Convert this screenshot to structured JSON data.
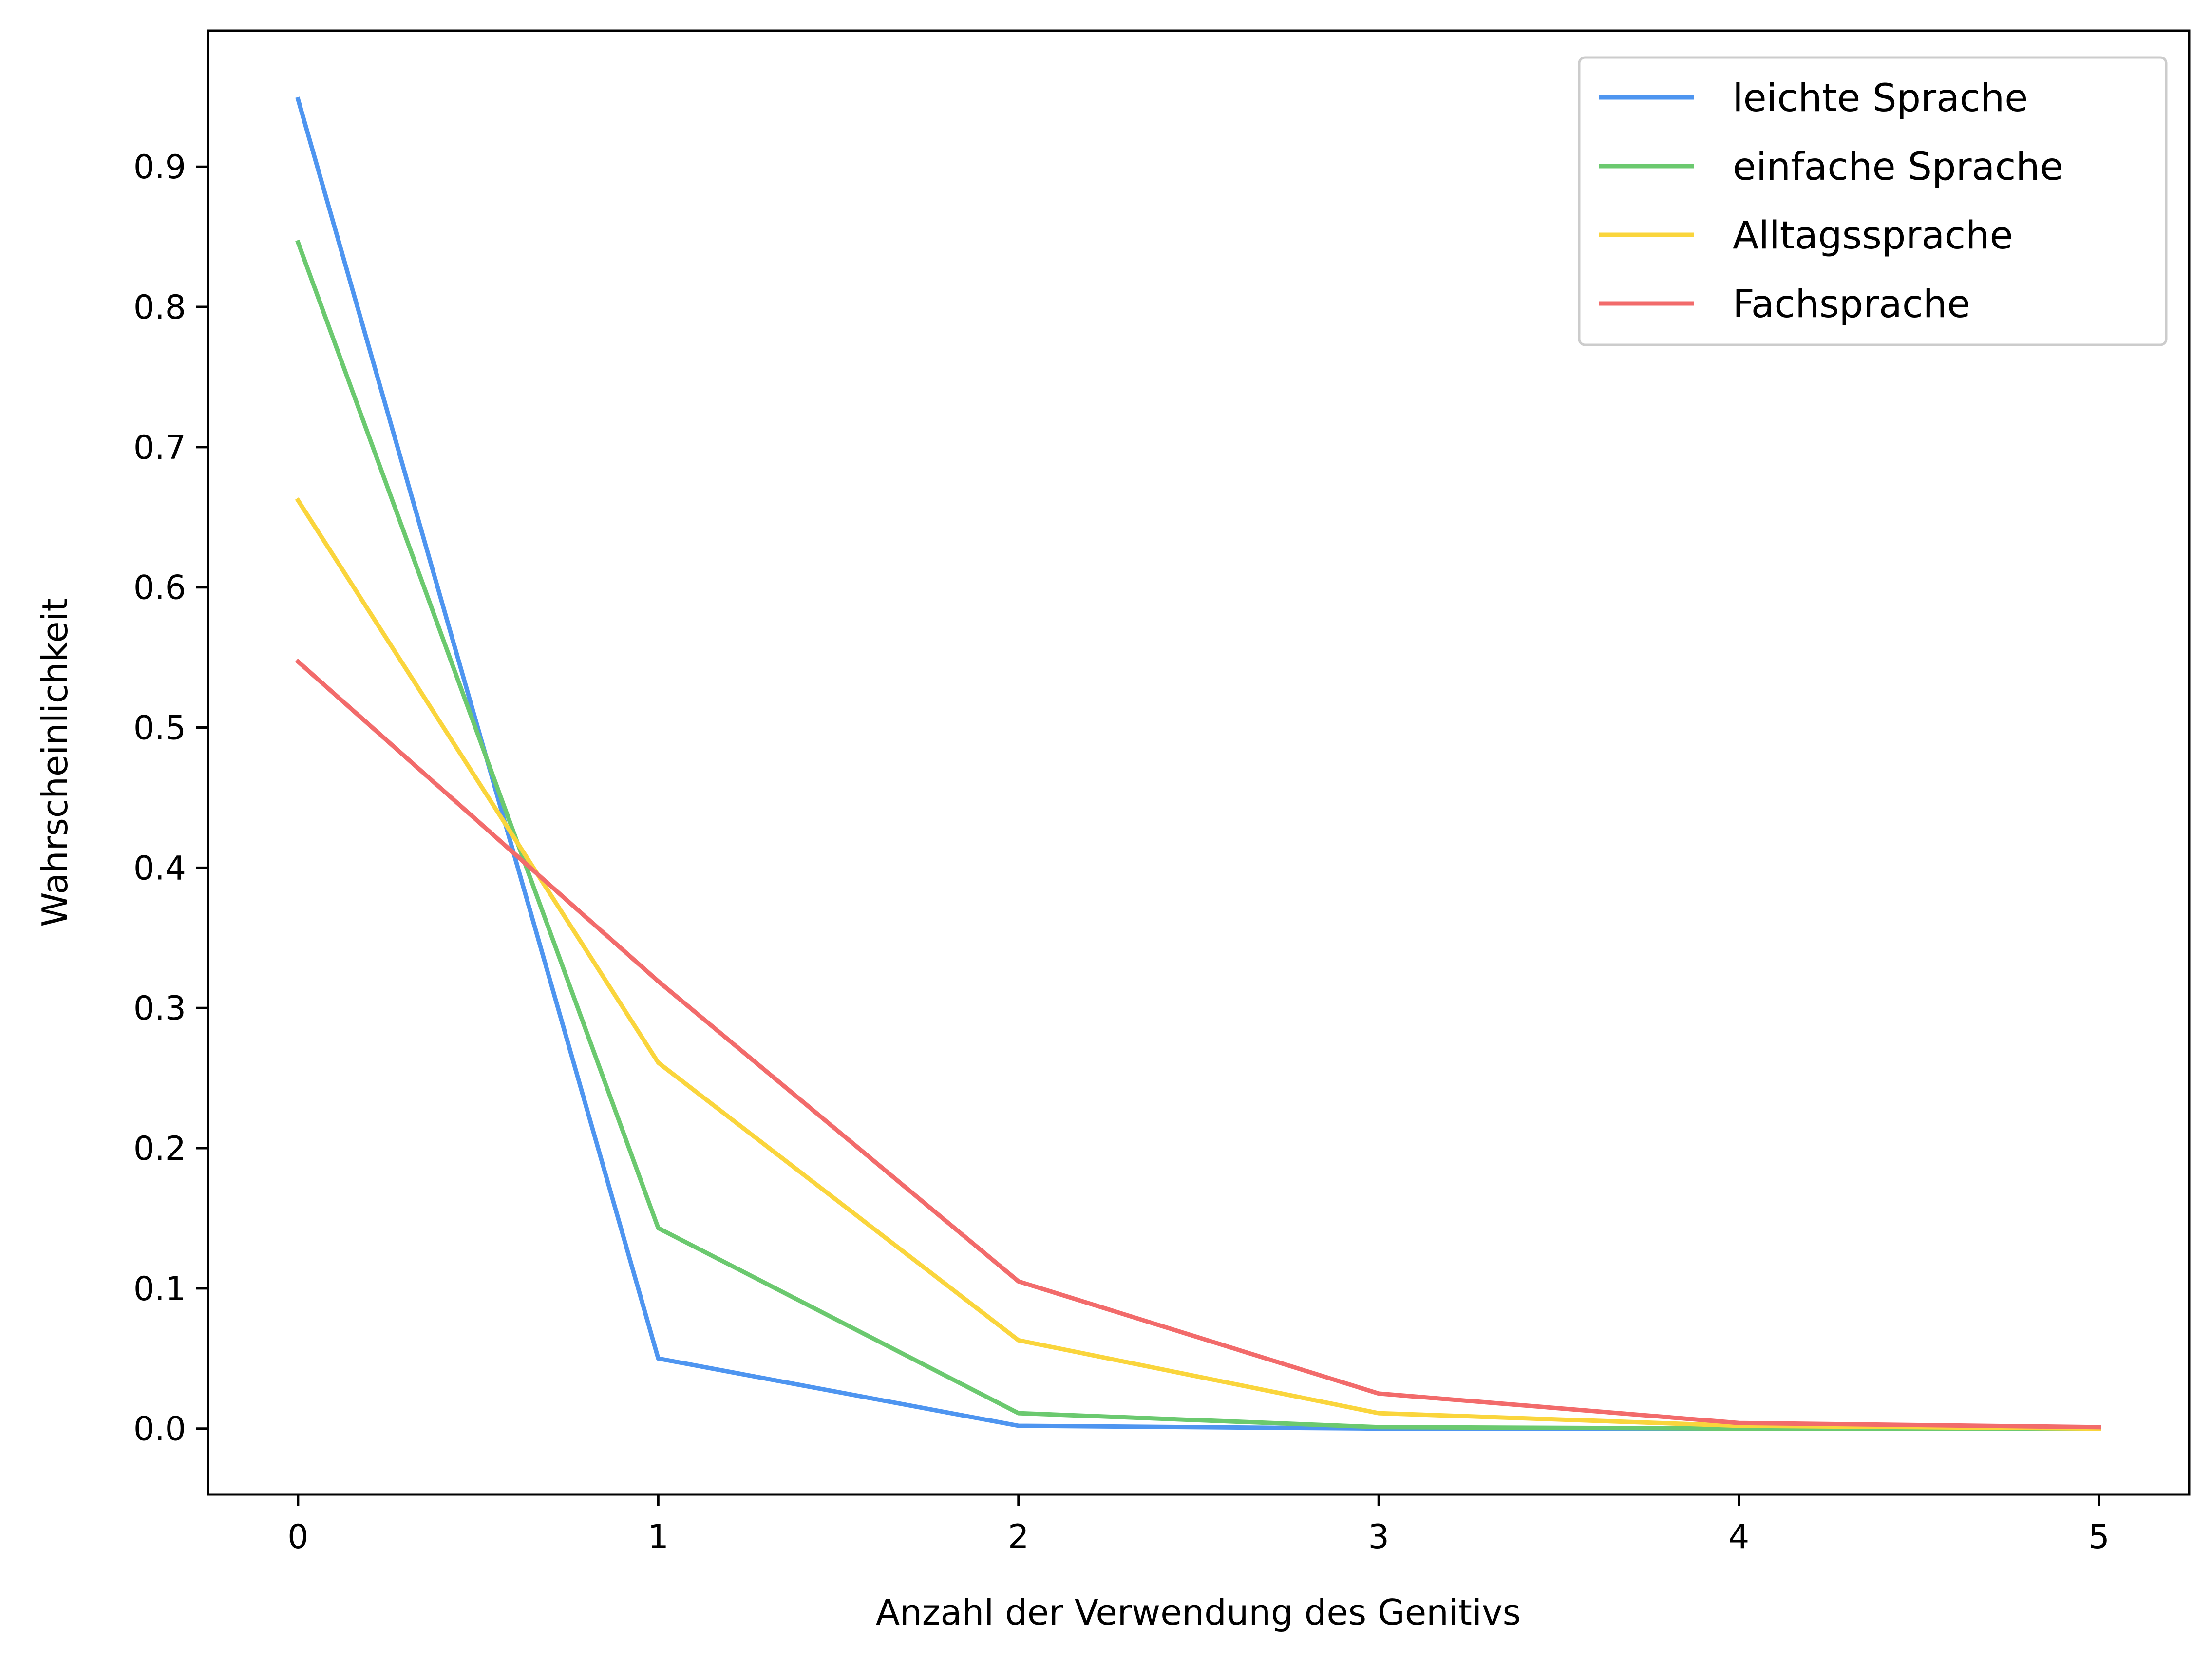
{
  "chart_data": {
    "type": "line",
    "xlabel": "Anzahl der Verwendung des Genitivs",
    "ylabel": "Wahrscheinlichkeit",
    "x": [
      0,
      1,
      2,
      3,
      4,
      5
    ],
    "x_ticks": [
      "0",
      "1",
      "2",
      "3",
      "4",
      "5"
    ],
    "y_ticks": [
      "0.0",
      "0.1",
      "0.2",
      "0.3",
      "0.4",
      "0.5",
      "0.6",
      "0.7",
      "0.8",
      "0.9"
    ],
    "xlim": [
      -0.25,
      5.25
    ],
    "ylim": [
      -0.047,
      0.997
    ],
    "grid": false,
    "legend_position": "top-right",
    "series": [
      {
        "name": "leichte Sprache",
        "color": "#4e95f0",
        "values": [
          0.948,
          0.05,
          0.002,
          0.0,
          0.0,
          0.0
        ]
      },
      {
        "name": "einfache Sprache",
        "color": "#6bc96f",
        "values": [
          0.846,
          0.143,
          0.011,
          0.001,
          0.0,
          0.0
        ]
      },
      {
        "name": "Alltagssprache",
        "color": "#fad53c",
        "values": [
          0.662,
          0.261,
          0.063,
          0.011,
          0.002,
          0.0
        ]
      },
      {
        "name": "Fachsprache",
        "color": "#f26b6b",
        "values": [
          0.547,
          0.319,
          0.105,
          0.025,
          0.004,
          0.001
        ]
      }
    ]
  }
}
